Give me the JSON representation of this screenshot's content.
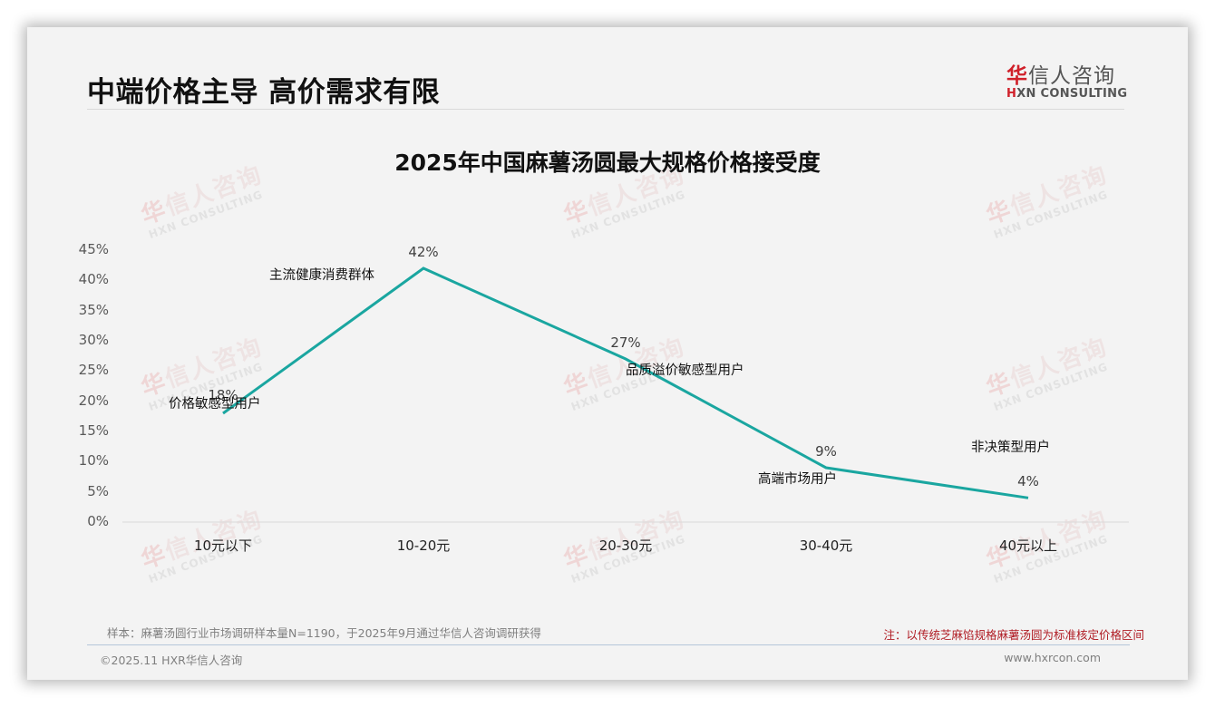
{
  "header": {
    "page_title": "中端价格主导 高价需求有限",
    "logo": {
      "cn_first": "华",
      "cn_rest": "信人咨询",
      "en_first": "H",
      "en_rest": "XN CONSULTING"
    }
  },
  "watermark": {
    "cn_first": "华",
    "cn_rest": "信人咨询",
    "en": "HXN CONSULTING"
  },
  "chart_data": {
    "type": "line",
    "title": "2025年中国麻薯汤圆最大规格价格接受度",
    "xlabel": "",
    "ylabel": "",
    "categories": [
      "10元以下",
      "10-20元",
      "20-30元",
      "30-40元",
      "40元以上"
    ],
    "values": [
      18,
      42,
      27,
      9,
      4
    ],
    "value_labels": [
      "18%",
      "42%",
      "27%",
      "9%",
      "4%"
    ],
    "annotations": [
      "价格敏感型用户",
      "主流健康消费群体",
      "品质溢价敏感型用户",
      "高端市场用户",
      "非决策型用户"
    ],
    "yticks": [
      "0%",
      "5%",
      "10%",
      "15%",
      "20%",
      "25%",
      "30%",
      "35%",
      "40%",
      "45%"
    ],
    "ylim": [
      0,
      45
    ],
    "grid": false,
    "legend": "none",
    "line_color": "#1aa6a0"
  },
  "footer": {
    "sample": "样本：麻薯汤圆行业市场调研样本量N=1190，于2025年9月通过华信人咨询调研获得",
    "note": "注：以传统芝麻馅规格麻薯汤圆为标准核定价格区间",
    "copyright": "©2025.11 HXR华信人咨询",
    "website": "www.hxrcon.com"
  }
}
